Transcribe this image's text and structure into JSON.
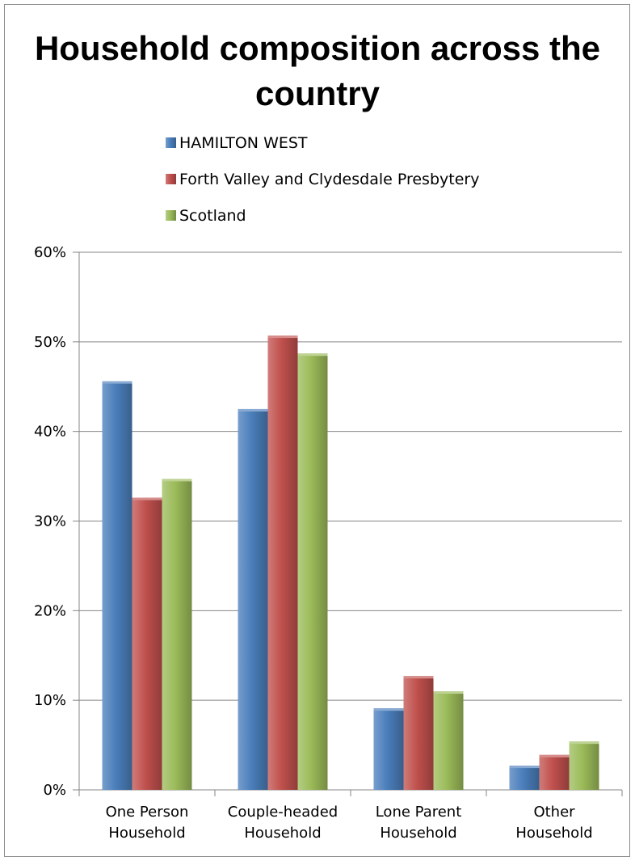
{
  "chart_data": {
    "type": "bar",
    "title": "Household composition across the country",
    "categories": [
      "One Person Household",
      "Couple-headed Household",
      "Lone Parent Household",
      "Other Household"
    ],
    "category_lines": [
      [
        "One Person",
        "Household"
      ],
      [
        "Couple-headed",
        "Household"
      ],
      [
        "Lone Parent",
        "Household"
      ],
      [
        "Other",
        "Household"
      ]
    ],
    "series": [
      {
        "name": "HAMILTON WEST",
        "values": [
          45.6,
          42.5,
          9.1,
          2.7
        ],
        "color": "#4a7ebb"
      },
      {
        "name": "Forth Valley and Clydesdale Presbytery",
        "values": [
          32.6,
          50.7,
          12.7,
          3.9
        ],
        "color": "#c0504d"
      },
      {
        "name": "Scotland",
        "values": [
          34.7,
          48.7,
          11.0,
          5.4
        ],
        "color": "#9bbb59"
      }
    ],
    "ylim": [
      0,
      60
    ],
    "yticks": [
      0,
      10,
      20,
      30,
      40,
      50,
      60
    ],
    "ytick_labels": [
      "0%",
      "10%",
      "20%",
      "30%",
      "40%",
      "50%",
      "60%"
    ],
    "grid": true,
    "legend_position": "top"
  }
}
